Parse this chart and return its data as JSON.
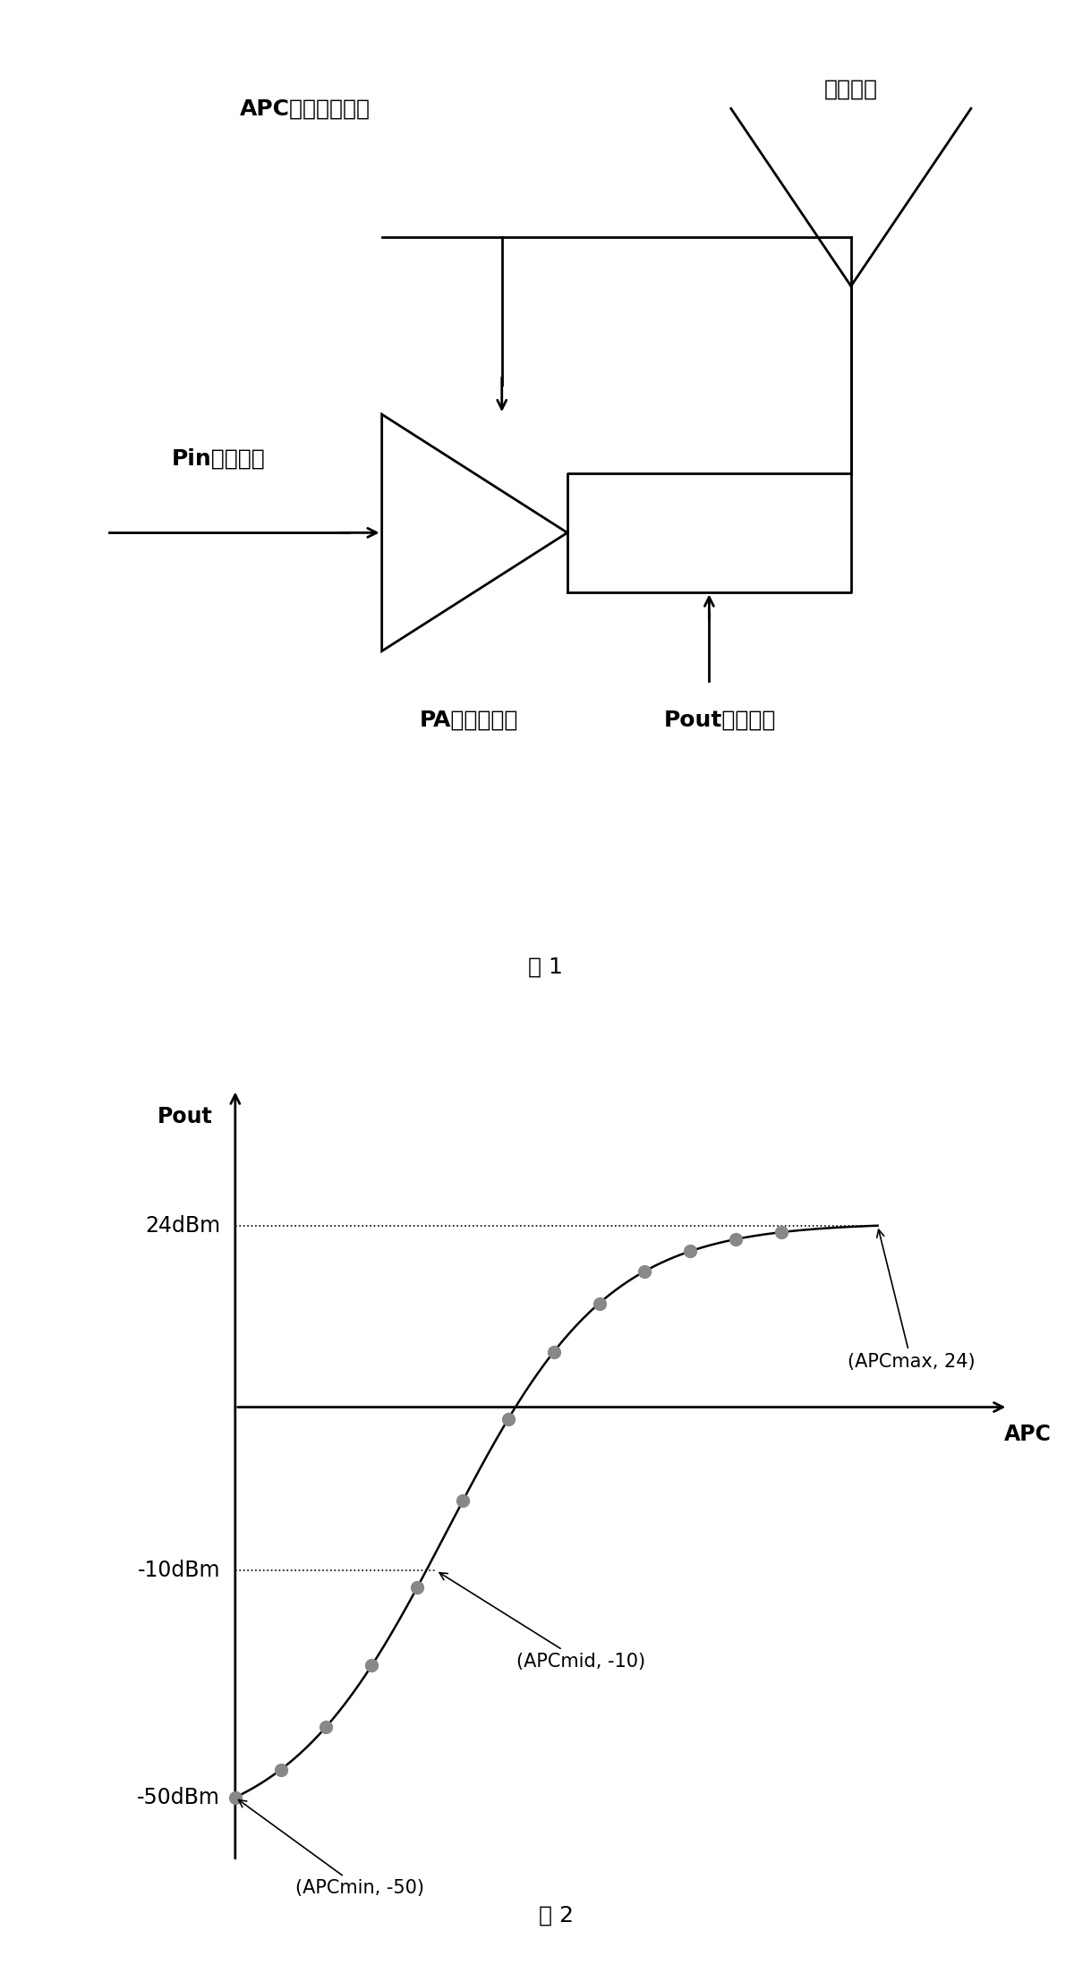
{
  "fig1_title": "图 1",
  "fig2_title": "图 2",
  "label_apc": "APC自动功率控制",
  "label_antenna": "射频天线",
  "label_pin": "Pin输入功率",
  "label_pa": "PA功率放大器",
  "label_pout_label": "Pout输出功率",
  "label_pout_axis": "Pout",
  "label_apc_axis": "APC",
  "label_24dbm": "24dBm",
  "label_10dbm": "-10dBm",
  "label_50dbm": "-50dBm",
  "annotation_max": "(APCmax, 24)",
  "annotation_mid": "(APCmid, -10)",
  "annotation_min": "(APCmin, -50)",
  "bg_color": "#ffffff",
  "line_color": "#000000",
  "dot_color": "#888888",
  "curve_color": "#000000",
  "fontsize_chinese": 18,
  "fontsize_captions": 18,
  "fontsize_axis_labels": 17,
  "fontsize_annotations": 15,
  "lw": 2.0
}
